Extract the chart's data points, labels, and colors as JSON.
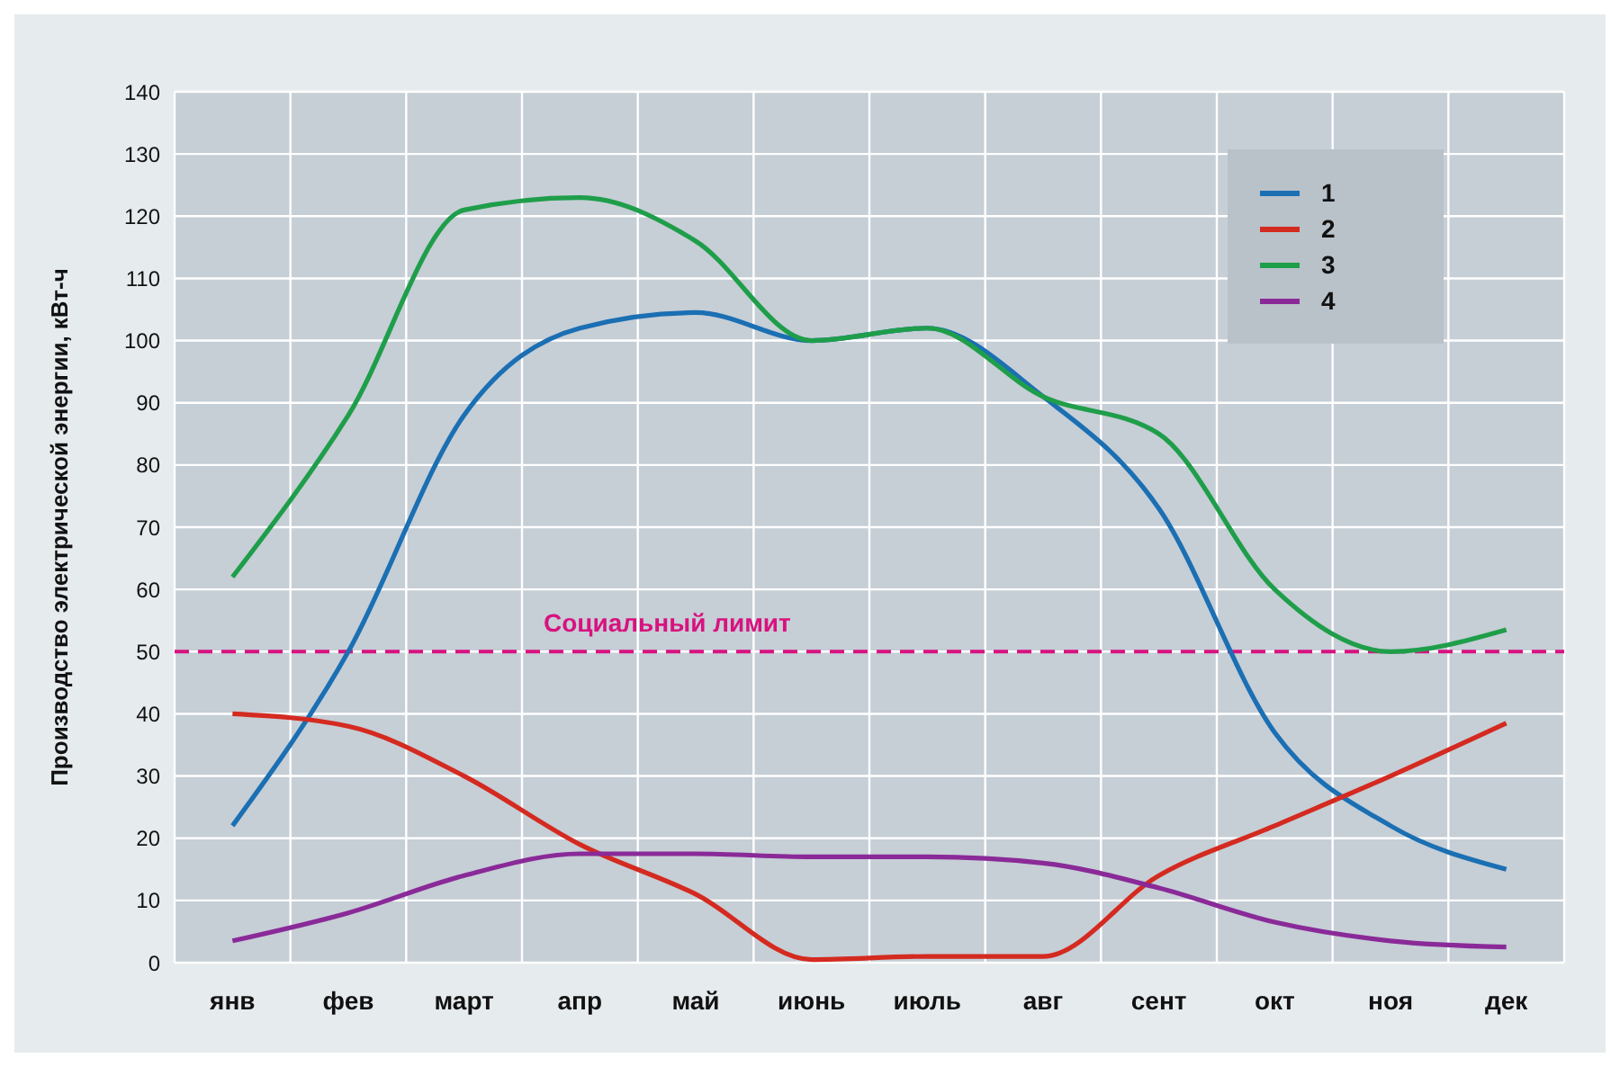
{
  "chart_data": {
    "type": "line",
    "ylabel": "Производство электрической энергии, кВт-ч",
    "categories": [
      "янв",
      "фев",
      "март",
      "апр",
      "май",
      "июнь",
      "июль",
      "авг",
      "сент",
      "окт",
      "ноя",
      "дек"
    ],
    "series": [
      {
        "name": "1",
        "color": "#1b6fb3",
        "values": [
          22,
          50,
          88,
          102,
          104.5,
          100,
          102,
          91,
          73,
          37,
          22,
          15
        ]
      },
      {
        "name": "2",
        "color": "#d42a20",
        "values": [
          40,
          38,
          30,
          19,
          11,
          0.5,
          1,
          1,
          14,
          22,
          30,
          38.5
        ]
      },
      {
        "name": "3",
        "color": "#1f9e4a",
        "values": [
          62,
          88,
          121,
          123,
          116,
          100,
          102,
          91,
          85,
          60,
          50,
          53.5
        ]
      },
      {
        "name": "4",
        "color": "#8a2a98",
        "values": [
          3.5,
          8,
          14,
          17.5,
          17.5,
          17,
          17,
          16,
          12,
          6.5,
          3.5,
          2.5
        ]
      }
    ],
    "ylim": [
      0,
      140
    ],
    "yticks": [
      0,
      10,
      20,
      30,
      40,
      50,
      60,
      70,
      80,
      90,
      100,
      110,
      120,
      130,
      140
    ],
    "grid": true,
    "legend": "top right",
    "marker": "none",
    "line_style": "solid",
    "ref_lines": [
      {
        "axis": "y",
        "value": 50,
        "label": "Социальный лимит",
        "color": "#d8127f",
        "line_style": "dashed"
      }
    ]
  }
}
